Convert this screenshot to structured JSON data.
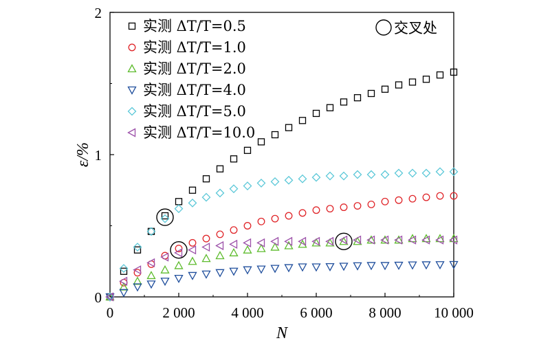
{
  "chart_data": {
    "type": "scatter",
    "xlabel": "N",
    "ylabel": "ε/%",
    "xlim": [
      0,
      10000
    ],
    "ylim": [
      0,
      2
    ],
    "xticks": [
      0,
      2000,
      4000,
      6000,
      8000,
      10000
    ],
    "xtick_labels": [
      "0",
      "2 000",
      "4 000",
      "6 000",
      "8 000",
      "10 000"
    ],
    "yticks": [
      0,
      1,
      2
    ],
    "ytick_labels": [
      "0",
      "1",
      "2"
    ],
    "grid": false,
    "legend_position": "top-left",
    "x": [
      0,
      400,
      800,
      1200,
      1600,
      2000,
      2400,
      2800,
      3200,
      3600,
      4000,
      4400,
      4800,
      5200,
      5600,
      6000,
      6400,
      6800,
      7200,
      7600,
      8000,
      8400,
      8800,
      9200,
      9600,
      10000
    ],
    "series": [
      {
        "name": "实测 ΔT/T=0.5",
        "marker": "square",
        "color": "#000000",
        "values": [
          0,
          0.18,
          0.33,
          0.46,
          0.57,
          0.67,
          0.75,
          0.83,
          0.9,
          0.97,
          1.03,
          1.09,
          1.14,
          1.19,
          1.24,
          1.29,
          1.33,
          1.37,
          1.4,
          1.43,
          1.46,
          1.49,
          1.51,
          1.53,
          1.56,
          1.58
        ]
      },
      {
        "name": "实测 ΔT/T=1.0",
        "marker": "circle",
        "color": "#e0262a",
        "values": [
          0,
          0.1,
          0.17,
          0.23,
          0.29,
          0.34,
          0.38,
          0.41,
          0.44,
          0.47,
          0.5,
          0.53,
          0.55,
          0.57,
          0.59,
          0.61,
          0.62,
          0.63,
          0.64,
          0.65,
          0.67,
          0.68,
          0.69,
          0.7,
          0.71,
          0.71
        ]
      },
      {
        "name": "实测 ΔT/T=2.0",
        "marker": "triangle-up",
        "color": "#5dbb2c",
        "values": [
          0,
          0.07,
          0.11,
          0.15,
          0.19,
          0.22,
          0.25,
          0.27,
          0.29,
          0.31,
          0.33,
          0.34,
          0.35,
          0.36,
          0.37,
          0.38,
          0.38,
          0.39,
          0.39,
          0.4,
          0.4,
          0.4,
          0.41,
          0.41,
          0.41,
          0.41
        ]
      },
      {
        "name": "实测 ΔT/T=4.0",
        "marker": "triangle-down",
        "color": "#1f4e9c",
        "values": [
          0,
          0.03,
          0.07,
          0.09,
          0.11,
          0.13,
          0.15,
          0.16,
          0.17,
          0.18,
          0.19,
          0.195,
          0.2,
          0.205,
          0.21,
          0.21,
          0.212,
          0.215,
          0.218,
          0.22,
          0.22,
          0.222,
          0.224,
          0.225,
          0.226,
          0.227
        ]
      },
      {
        "name": "实测 ΔT/T=5.0",
        "marker": "diamond",
        "color": "#5cc8d8",
        "values": [
          0,
          0.2,
          0.35,
          0.46,
          0.55,
          0.62,
          0.66,
          0.7,
          0.73,
          0.76,
          0.78,
          0.8,
          0.81,
          0.82,
          0.83,
          0.84,
          0.85,
          0.85,
          0.86,
          0.86,
          0.86,
          0.87,
          0.87,
          0.87,
          0.88,
          0.88
        ]
      },
      {
        "name": "实测 ΔT/T=10.0",
        "marker": "triangle-left",
        "color": "#9b4fa8",
        "values": [
          0,
          0.11,
          0.19,
          0.24,
          0.28,
          0.31,
          0.33,
          0.35,
          0.36,
          0.37,
          0.38,
          0.38,
          0.39,
          0.39,
          0.39,
          0.39,
          0.39,
          0.4,
          0.4,
          0.4,
          0.4,
          0.4,
          0.4,
          0.4,
          0.4,
          0.4
        ]
      }
    ],
    "annotation": {
      "label": "交叉处",
      "marker": "circle",
      "points": [
        {
          "x": 1600,
          "y": 0.56
        },
        {
          "x": 2000,
          "y": 0.33
        },
        {
          "x": 6800,
          "y": 0.39
        }
      ]
    }
  }
}
